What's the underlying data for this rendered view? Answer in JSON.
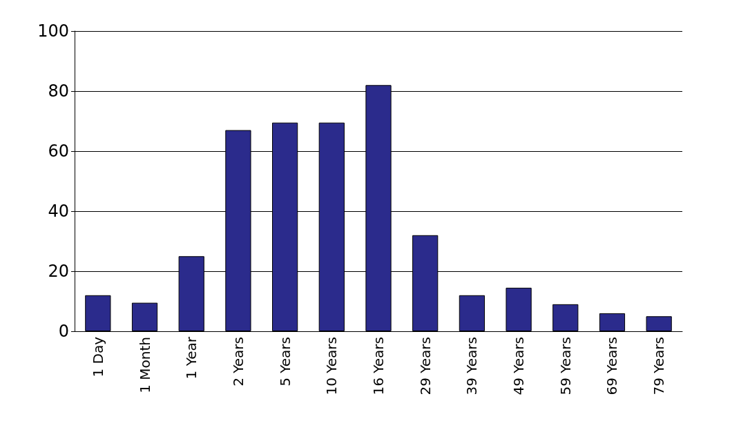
{
  "chart_data": {
    "type": "bar",
    "categories": [
      "1 Day",
      "1 Month",
      "1 Year",
      "2 Years",
      "5 Years",
      "10 Years",
      "16 Years",
      "29 Years",
      "39 Years",
      "49 Years",
      "59 Years",
      "69 Years",
      "79 Years"
    ],
    "values": [
      12,
      9.5,
      25,
      67,
      69.5,
      69.5,
      82,
      32,
      12,
      14.5,
      9,
      6,
      5
    ],
    "color": "#2b2b8c",
    "ylim": [
      0,
      100
    ],
    "yticks": [
      0,
      20,
      40,
      60,
      80,
      100
    ],
    "grid": "y"
  }
}
